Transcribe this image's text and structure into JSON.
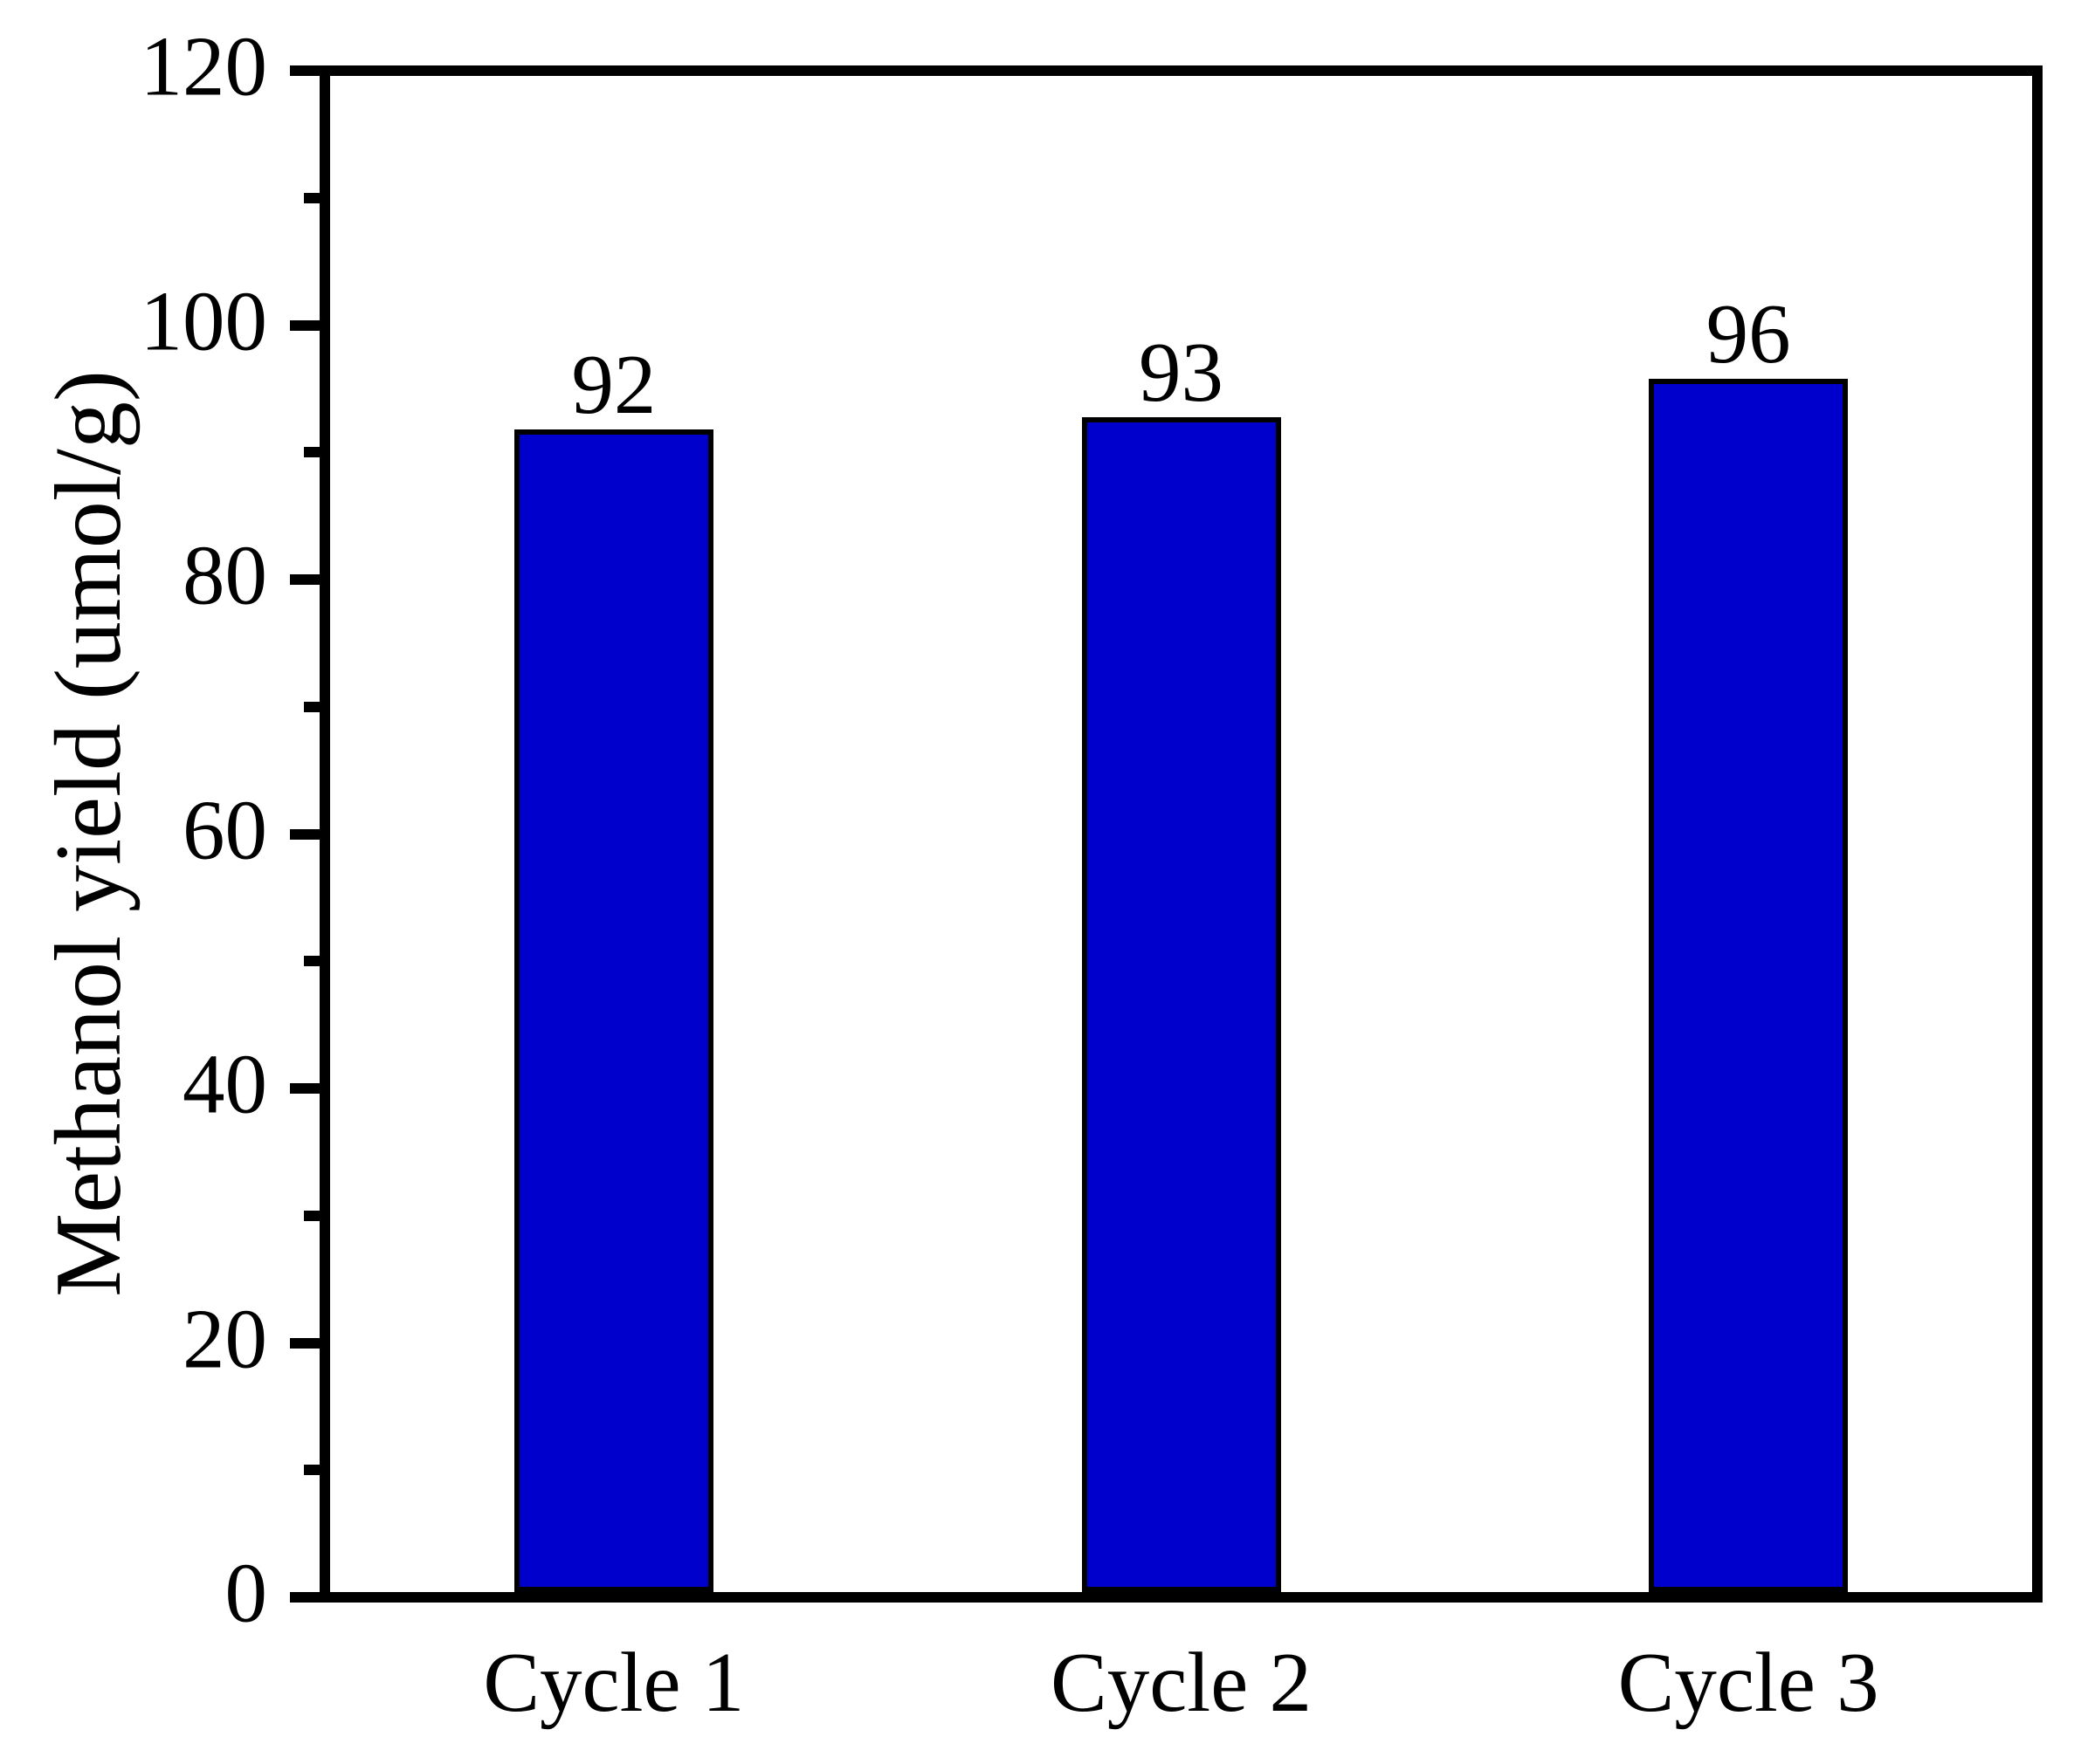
{
  "chart_data": {
    "type": "bar",
    "title": "",
    "categories": [
      "Cycle 1",
      "Cycle 2",
      "Cycle 3"
    ],
    "values": [
      92,
      93,
      96
    ],
    "bar_value_labels": [
      "92",
      "93",
      "96"
    ],
    "xlabel": "",
    "ylabel": "Methanol yield (umol/g)",
    "ylim": [
      0,
      120
    ],
    "yticks_major": [
      0,
      20,
      40,
      60,
      80,
      100,
      120
    ],
    "yticks_minor": [
      10,
      30,
      50,
      70,
      90,
      110
    ],
    "grid": false,
    "legend_position": "none",
    "colors": {
      "bar_fill": "#0000CC",
      "bar_border": "#000000",
      "axis": "#000000",
      "text": "#000000",
      "background": "#FFFFFF"
    }
  }
}
